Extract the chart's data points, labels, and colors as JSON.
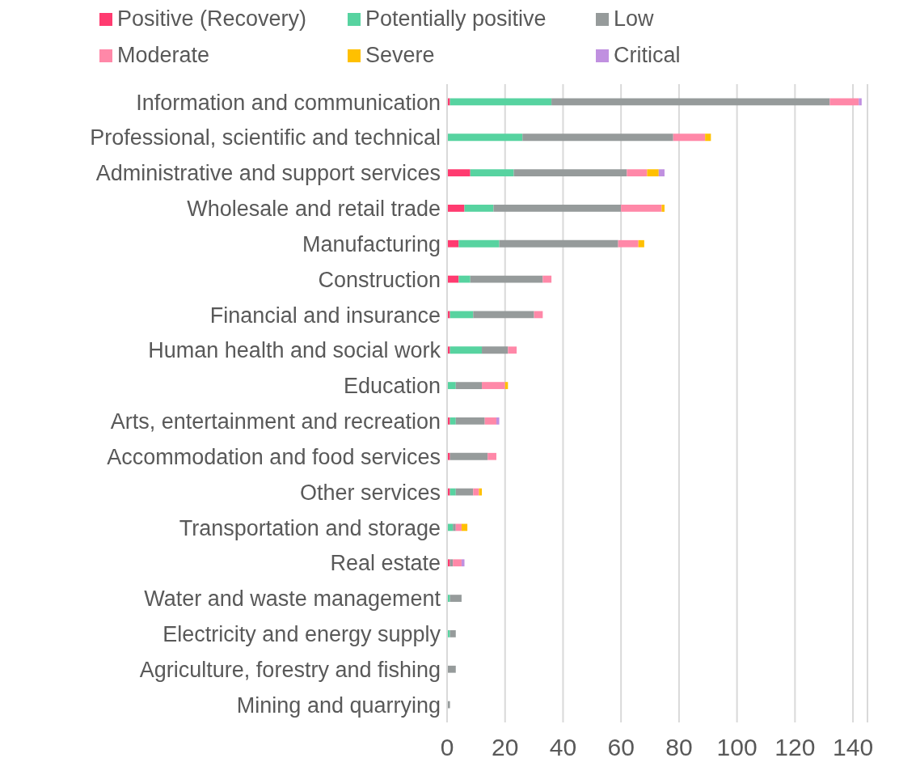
{
  "chart_data": {
    "type": "bar",
    "orientation": "horizontal",
    "stacked": true,
    "categories": [
      "Information and communication",
      "Professional, scientific and technical",
      "Administrative and support services",
      "Wholesale and retail trade",
      "Manufacturing",
      "Construction",
      "Financial and insurance",
      "Human health and social work",
      "Education",
      "Arts, entertainment and recreation",
      "Accommodation and food services",
      "Other services",
      "Transportation and storage",
      "Real estate",
      "Water and waste management",
      "Electricity and energy supply",
      "Agriculture, forestry and fishing",
      "Mining and quarrying"
    ],
    "series": [
      {
        "name": "Positive (Recovery)",
        "color": "#ff3b70",
        "values": [
          1,
          0,
          8,
          6,
          4,
          4,
          1,
          1,
          0,
          1,
          1,
          1,
          0,
          1,
          0,
          0,
          0,
          0
        ]
      },
      {
        "name": "Potentially positive",
        "color": "#57d3a0",
        "values": [
          35,
          26,
          15,
          10,
          14,
          4,
          8,
          11,
          3,
          2,
          0,
          2,
          2,
          0,
          1,
          1,
          0,
          0
        ]
      },
      {
        "name": "Low",
        "color": "#969b9b",
        "values": [
          96,
          52,
          39,
          44,
          41,
          25,
          21,
          9,
          9,
          10,
          13,
          6,
          1,
          1,
          4,
          2,
          3,
          1
        ]
      },
      {
        "name": "Moderate",
        "color": "#ff88a8",
        "values": [
          10,
          11,
          7,
          14,
          7,
          3,
          3,
          3,
          8,
          4,
          3,
          2,
          2,
          3,
          0,
          0,
          0,
          0
        ]
      },
      {
        "name": "Severe",
        "color": "#ffc000",
        "values": [
          0,
          2,
          4,
          1,
          2,
          0,
          0,
          0,
          1,
          0,
          0,
          1,
          2,
          0,
          0,
          0,
          0,
          0
        ]
      },
      {
        "name": "Critical",
        "color": "#c090e0",
        "values": [
          1,
          0,
          2,
          0,
          0,
          0,
          0,
          0,
          0,
          1,
          0,
          0,
          0,
          1,
          0,
          0,
          0,
          0
        ]
      }
    ],
    "xlim": [
      0,
      145
    ],
    "xticks": [
      0,
      20,
      40,
      60,
      80,
      100,
      120,
      140
    ],
    "grid": "x",
    "legend": "top"
  }
}
